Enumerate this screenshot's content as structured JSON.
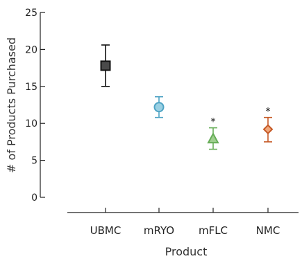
{
  "chart_data": {
    "type": "scatter",
    "xlabel": "Product",
    "ylabel": "# of Products Purchased",
    "ylim": [
      0,
      25
    ],
    "yticks": [
      0,
      5,
      10,
      15,
      20,
      25
    ],
    "grid": false,
    "categories": [
      "UBMC",
      "mRYO",
      "mFLC",
      "NMC"
    ],
    "points": [
      {
        "category": "UBMC",
        "mean": 17.8,
        "lower": 15.0,
        "upper": 20.6,
        "marker": "square",
        "fill": "#4a4a4a",
        "stroke": "#111111",
        "significance": ""
      },
      {
        "category": "mRYO",
        "mean": 12.2,
        "lower": 10.8,
        "upper": 13.6,
        "marker": "circle",
        "fill": "#9ad0e3",
        "stroke": "#4ea3c4",
        "significance": ""
      },
      {
        "category": "mFLC",
        "mean": 7.9,
        "lower": 6.5,
        "upper": 9.4,
        "marker": "triangle",
        "fill": "#9fcf8f",
        "stroke": "#67ad58",
        "significance": "*"
      },
      {
        "category": "NMC",
        "mean": 9.2,
        "lower": 7.5,
        "upper": 10.8,
        "marker": "diamond",
        "fill": "#f1a87c",
        "stroke": "#c65a27",
        "significance": "*"
      }
    ]
  }
}
